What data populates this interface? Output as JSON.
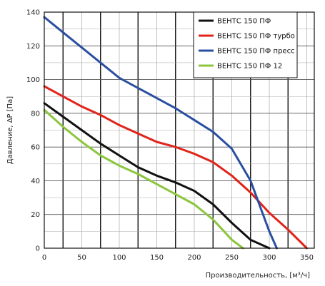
{
  "chart_data": {
    "type": "line",
    "title": "",
    "xlabel": "Производительность, [м³/ч]",
    "ylabel": "Давление, ΔP [Па]",
    "xlim": [
      0,
      360
    ],
    "ylim": [
      0,
      140
    ],
    "xticks": [
      0,
      50,
      100,
      150,
      200,
      250,
      300,
      350
    ],
    "yticks": [
      0,
      20,
      40,
      60,
      80,
      100,
      120,
      140
    ],
    "grid": true,
    "legend_position": "top-right",
    "series": [
      {
        "name": "ВЕНТС 150 ПФ",
        "color": "#111111",
        "x": [
          0,
          25,
          50,
          75,
          100,
          125,
          150,
          175,
          200,
          225,
          250,
          275,
          300
        ],
        "y": [
          86,
          78,
          70,
          62,
          55,
          48,
          43,
          39,
          34,
          26,
          15,
          5,
          0
        ]
      },
      {
        "name": "ВЕНТС 150 ПФ турбо",
        "color": "#e2231a",
        "x": [
          0,
          25,
          50,
          75,
          100,
          125,
          150,
          175,
          200,
          225,
          250,
          275,
          300,
          325,
          350
        ],
        "y": [
          96,
          90,
          84,
          79,
          73,
          68,
          63,
          60,
          56,
          51,
          43,
          33,
          21,
          11,
          0
        ]
      },
      {
        "name": "ВЕНТС 150 ПФ пресс",
        "color": "#2b4fa0",
        "x": [
          0,
          25,
          50,
          75,
          100,
          125,
          150,
          175,
          200,
          225,
          250,
          275,
          290,
          300,
          310
        ],
        "y": [
          137,
          128,
          119,
          110,
          101,
          95,
          89,
          83,
          76,
          69,
          59,
          40,
          22,
          10,
          0
        ]
      },
      {
        "name": "ВЕНТС 150 ПФ 12",
        "color": "#8cc63e",
        "x": [
          0,
          25,
          50,
          75,
          100,
          125,
          150,
          175,
          200,
          225,
          250,
          265
        ],
        "y": [
          82,
          72,
          63,
          55,
          49,
          44,
          38,
          32,
          26,
          17,
          5,
          0
        ]
      }
    ]
  }
}
